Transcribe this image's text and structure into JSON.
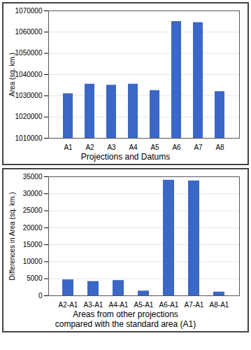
{
  "chart_data": [
    {
      "type": "bar",
      "x_label": "Projections and Datums",
      "y_label": "Area (sq. km.)",
      "categories": [
        "A1",
        "A2",
        "A3",
        "A4",
        "A5",
        "A6",
        "A7",
        "A8"
      ],
      "values": [
        1031000,
        1035500,
        1035000,
        1035500,
        1032500,
        1065000,
        1064500,
        1032000
      ],
      "color": "#3b67c6",
      "ylim": [
        1010000,
        1070000
      ],
      "yticks": [
        1010000,
        1020000,
        1030000,
        1040000,
        1050000,
        1060000,
        1070000
      ],
      "grid": true
    },
    {
      "type": "bar",
      "x_label": "Areas from other projections\ncompared with the standard area (A1)",
      "y_label": "Differences in Area (sq. km.)",
      "categories": [
        "A2-A1",
        "A3-A1",
        "A4-A1",
        "A5-A1",
        "A6-A1",
        "A7-A1",
        "A8-A1"
      ],
      "values": [
        4700,
        4200,
        4500,
        1400,
        34000,
        33800,
        1100
      ],
      "color": "#3b67c6",
      "ylim": [
        0,
        35000
      ],
      "yticks": [
        0,
        5000,
        10000,
        15000,
        20000,
        25000,
        30000,
        35000
      ],
      "grid": true
    }
  ]
}
